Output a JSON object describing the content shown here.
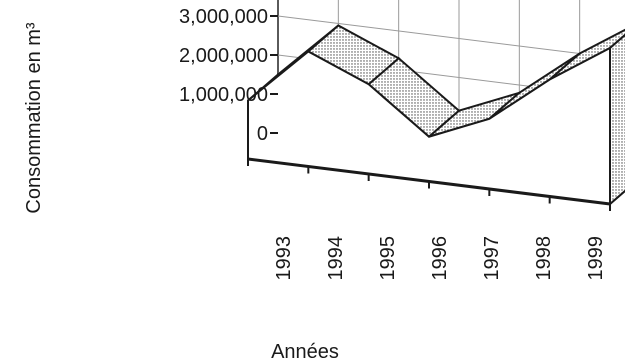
{
  "chart_data": {
    "type": "area",
    "title": "",
    "xlabel": "Années",
    "ylabel": "Consommation en m³",
    "categories": [
      "1993",
      "1994",
      "1995",
      "1996",
      "1997",
      "1998",
      "1999"
    ],
    "y_tick_labels": [
      "0",
      "1,000,000",
      "2,000,000",
      "3,000,000"
    ],
    "y_tick_values": [
      0,
      1000000,
      2000000,
      3000000
    ],
    "series": [
      {
        "values": [
          1500000,
          2950000,
          2300000,
          1150000,
          1800000,
          3000000,
          4000000
        ]
      }
    ],
    "ylim": [
      0,
      4000000
    ],
    "grid": true,
    "style": "3d"
  },
  "colors": {
    "ink": "#1a1a1a",
    "grid": "#9a9a9a",
    "ribbon": "#d9d9d9",
    "wall": "#ffffff"
  }
}
